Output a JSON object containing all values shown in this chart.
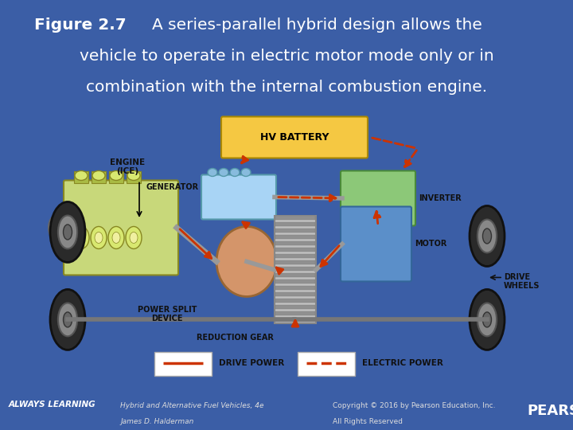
{
  "bg_color": "#3B5EA6",
  "diagram_bg": "#FFFFFF",
  "title_bold": "Figure 2.7",
  "title_lines": [
    "A series-parallel hybrid design allows the",
    "vehicle to operate in electric motor mode only or in",
    "combination with the internal combustion engine."
  ],
  "title_fontsize": 14.5,
  "title_color": "#FFFFFF",
  "footer_left1": "Hybrid and Alternative Fuel Vehicles, 4e",
  "footer_left2": "James D. Halderman",
  "footer_right1": "Copyright © 2016 by Pearson Education, Inc.",
  "footer_right2": "All Rights Reserved",
  "footer_fontsize": 6.5,
  "always_learning_text": "ALWAYS LEARNING",
  "pearson_text": "PEARSON",
  "battery_color": "#F5C842",
  "generator_color": "#A8D4F5",
  "inverter_color": "#8CC878",
  "motor_color": "#5B8FC9",
  "engine_color": "#C8D87A",
  "power_split_color": "#D4956A",
  "drive_arrow_color": "#CC3300",
  "electric_arrow_color": "#CC3300",
  "gear_color": "#AAAAAA",
  "wheel_color": "#3A3A3A",
  "axle_color": "#888888",
  "label_fontsize": 7.5,
  "label_color": "#000000"
}
